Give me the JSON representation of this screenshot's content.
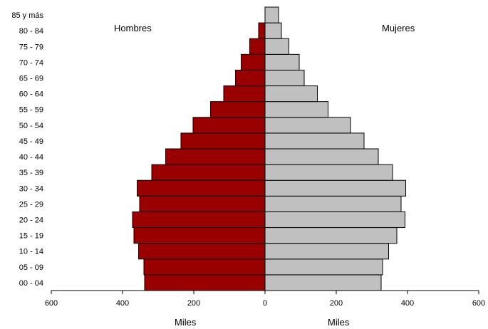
{
  "chart_data": {
    "type": "bar",
    "orientation": "horizontal-population-pyramid",
    "categories": [
      "00 - 04",
      "05 - 09",
      "10 - 14",
      "15 - 19",
      "20 - 24",
      "25 - 29",
      "30 - 34",
      "35 - 39",
      "40 - 44",
      "45 - 49",
      "50 - 54",
      "55 - 59",
      "60 - 64",
      "65 - 69",
      "70 - 74",
      "75 - 79",
      "80 - 84",
      "85 y más"
    ],
    "series": [
      {
        "name": "Hombres",
        "values": [
          338,
          340,
          355,
          368,
          372,
          352,
          359,
          318,
          279,
          236,
          202,
          153,
          116,
          83,
          67,
          43,
          18,
          0
        ],
        "color": "#990000",
        "side": "left"
      },
      {
        "name": "Mujeres",
        "values": [
          326,
          330,
          347,
          370,
          393,
          382,
          395,
          358,
          318,
          278,
          240,
          177,
          147,
          110,
          96,
          67,
          46,
          38
        ],
        "color": "#c0c0c0",
        "side": "right"
      }
    ],
    "xlim": [
      -600,
      600
    ],
    "xticks": [
      -600,
      -400,
      -200,
      0,
      200,
      400,
      600
    ],
    "xtick_labels": [
      "600",
      "400",
      "200",
      "0",
      "200",
      "400",
      "600"
    ],
    "xlabel_left": "Miles",
    "xlabel_right": "Miles",
    "grid": false,
    "legend": "none",
    "bar_outline_color": "#000000"
  }
}
